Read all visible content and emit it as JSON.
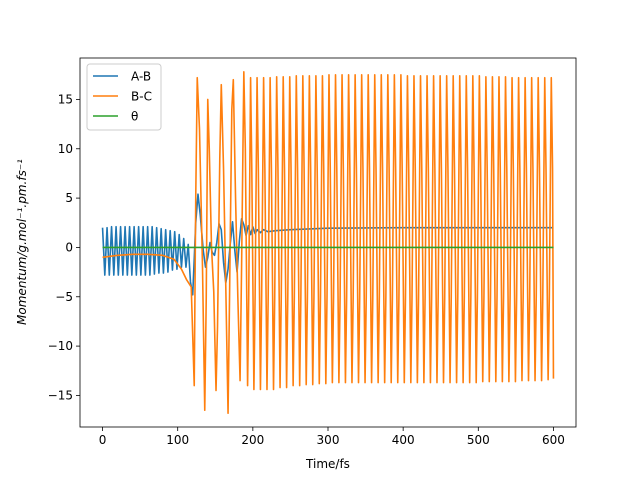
{
  "chart_data": {
    "type": "line",
    "xlabel": "Time/fs",
    "ylabel": "Momentum/g.mol⁻¹.pm.fs⁻¹",
    "xlim": [
      -30,
      630
    ],
    "ylim": [
      -18.2,
      19.2
    ],
    "xticks": [
      0,
      100,
      200,
      300,
      400,
      500,
      600
    ],
    "yticks": [
      -15,
      -10,
      -5,
      0,
      5,
      10,
      15
    ],
    "grid": false,
    "legend_position": "upper left",
    "series": [
      {
        "name": "A-B",
        "color": "#1f77b4",
        "points": [
          [
            0,
            2.0
          ],
          [
            3,
            -2.8
          ],
          [
            6,
            2.0
          ],
          [
            9,
            -2.8
          ],
          [
            12,
            2.1
          ],
          [
            15,
            -2.8
          ],
          [
            18,
            2.1
          ],
          [
            21,
            -2.8
          ],
          [
            24,
            2.1
          ],
          [
            27,
            -2.8
          ],
          [
            30,
            2.1
          ],
          [
            33,
            -2.8
          ],
          [
            36,
            2.1
          ],
          [
            39,
            -2.8
          ],
          [
            42,
            2.1
          ],
          [
            45,
            -2.8
          ],
          [
            48,
            2.1
          ],
          [
            51,
            -2.8
          ],
          [
            54,
            2.1
          ],
          [
            57,
            -2.8
          ],
          [
            60,
            2.1
          ],
          [
            63,
            -2.8
          ],
          [
            66,
            2.1
          ],
          [
            69,
            -2.7
          ],
          [
            72,
            2.0
          ],
          [
            75,
            -2.6
          ],
          [
            78,
            1.9
          ],
          [
            81,
            -2.6
          ],
          [
            84,
            1.8
          ],
          [
            87,
            -2.5
          ],
          [
            90,
            1.7
          ],
          [
            93,
            -2.3
          ],
          [
            96,
            1.6
          ],
          [
            99,
            -2.2
          ],
          [
            102,
            1.3
          ],
          [
            105,
            -2.0
          ],
          [
            108,
            0.9
          ],
          [
            111,
            -2.0
          ],
          [
            114,
            0.3
          ],
          [
            117,
            -3.5
          ],
          [
            120,
            -4.8
          ],
          [
            124,
            2.5
          ],
          [
            127,
            5.4
          ],
          [
            130,
            3.3
          ],
          [
            134,
            -0.3
          ],
          [
            137,
            -2.0
          ],
          [
            140,
            -1.0
          ],
          [
            143,
            0.5
          ],
          [
            146,
            -0.5
          ],
          [
            149,
            -0.8
          ],
          [
            152,
            0.5
          ],
          [
            155,
            2.4
          ],
          [
            158,
            1.8
          ],
          [
            161,
            -1.5
          ],
          [
            164,
            -3.6
          ],
          [
            167,
            -2.2
          ],
          [
            170,
            0.4
          ],
          [
            173,
            2.6
          ],
          [
            176,
            -0.3
          ],
          [
            179,
            -2.5
          ],
          [
            182,
            0.6
          ],
          [
            185,
            2.9
          ],
          [
            188,
            2.3
          ],
          [
            191,
            1.2
          ],
          [
            194,
            2.2
          ],
          [
            197,
            1.3
          ],
          [
            200,
            2.1
          ],
          [
            203,
            1.4
          ],
          [
            206,
            1.8
          ],
          [
            210,
            1.5
          ],
          [
            214,
            1.8
          ],
          [
            220,
            1.6
          ],
          [
            230,
            1.7
          ],
          [
            250,
            1.8
          ],
          [
            300,
            1.95
          ],
          [
            400,
            2.0
          ],
          [
            500,
            2.0
          ],
          [
            600,
            2.0
          ]
        ]
      },
      {
        "name": "B-C",
        "color": "#ff7f0e",
        "points": [
          [
            0,
            -1.0
          ],
          [
            20,
            -0.8
          ],
          [
            40,
            -0.7
          ],
          [
            60,
            -0.7
          ],
          [
            80,
            -0.8
          ],
          [
            95,
            -1.2
          ],
          [
            105,
            -2.2
          ],
          [
            112,
            -3.3
          ],
          [
            118,
            -4.0
          ],
          [
            122,
            -14.0
          ],
          [
            124,
            5.0
          ],
          [
            126,
            17.2
          ],
          [
            129,
            12.0
          ],
          [
            133,
            -2.0
          ],
          [
            136,
            -16.5
          ],
          [
            138,
            -5.0
          ],
          [
            140,
            15.0
          ],
          [
            142,
            10.0
          ],
          [
            145,
            0.0
          ],
          [
            148,
            -4.5
          ],
          [
            151,
            -14.5
          ],
          [
            153,
            -8.0
          ],
          [
            156,
            9.0
          ],
          [
            158,
            16.5
          ],
          [
            161,
            8.0
          ],
          [
            164,
            -4.0
          ],
          [
            167,
            -16.8
          ],
          [
            169,
            -5.0
          ],
          [
            172,
            14.0
          ],
          [
            174,
            17.0
          ],
          [
            177,
            5.0
          ],
          [
            180,
            -5.0
          ],
          [
            183,
            -13.5
          ],
          [
            185,
            -2.0
          ],
          [
            188,
            17.8
          ],
          [
            190,
            10.0
          ],
          [
            193,
            -14.0
          ],
          [
            194.5,
            -5.0
          ],
          [
            197,
            17.2
          ],
          [
            198.6,
            8.0
          ],
          [
            201.4,
            -14.4
          ],
          [
            203,
            -5.0
          ],
          [
            205.6,
            17.2
          ],
          [
            207.3,
            8.0
          ],
          [
            210.1,
            -14.4
          ],
          [
            211.7,
            -5.0
          ],
          [
            214.3,
            17.2
          ],
          [
            216.0,
            8.0
          ],
          [
            218.8,
            -14.4
          ],
          [
            220.4,
            -5.0
          ],
          [
            223.0,
            17.2
          ],
          [
            224.7,
            8.0
          ],
          [
            227.5,
            -14.4
          ],
          [
            229.1,
            -5.0
          ],
          [
            231.7,
            17.3
          ],
          [
            233.4,
            8.0
          ],
          [
            236.2,
            -14.2
          ],
          [
            237.8,
            -5.0
          ],
          [
            240.4,
            17.3
          ],
          [
            242.1,
            8.0
          ],
          [
            244.9,
            -14.2
          ],
          [
            246.5,
            -5.0
          ],
          [
            249.1,
            17.3
          ],
          [
            250.8,
            8.0
          ],
          [
            253.6,
            -14.0
          ],
          [
            255.2,
            -5.0
          ],
          [
            257.8,
            17.4
          ],
          [
            259.5,
            8.0
          ],
          [
            262.3,
            -14.0
          ],
          [
            263.9,
            -5.0
          ],
          [
            266.5,
            17.4
          ],
          [
            268.2,
            8.0
          ],
          [
            271.0,
            -13.9
          ],
          [
            272.6,
            -5.0
          ],
          [
            275.2,
            17.4
          ],
          [
            276.9,
            8.0
          ],
          [
            279.7,
            -13.9
          ],
          [
            281.3,
            -5.0
          ],
          [
            283.9,
            17.4
          ],
          [
            285.6,
            8.0
          ],
          [
            288.4,
            -13.8
          ],
          [
            290.0,
            -5.0
          ],
          [
            292.6,
            17.4
          ],
          [
            294.3,
            8.0
          ],
          [
            297.1,
            -13.8
          ],
          [
            298.7,
            -5.0
          ],
          [
            301.3,
            17.5
          ],
          [
            303.0,
            8.0
          ],
          [
            305.8,
            -13.7
          ],
          [
            307.4,
            -5.0
          ],
          [
            310.0,
            17.5
          ],
          [
            311.7,
            8.0
          ],
          [
            314.5,
            -13.7
          ],
          [
            316.1,
            -5.0
          ],
          [
            318.7,
            17.5
          ],
          [
            320.4,
            8.0
          ],
          [
            323.2,
            -13.7
          ],
          [
            324.8,
            -5.0
          ],
          [
            327.4,
            17.5
          ],
          [
            329.1,
            8.0
          ],
          [
            331.9,
            -13.7
          ],
          [
            333.5,
            -5.0
          ],
          [
            336.1,
            17.5
          ],
          [
            337.8,
            8.0
          ],
          [
            340.6,
            -13.7
          ],
          [
            342.2,
            -5.0
          ],
          [
            344.8,
            17.5
          ],
          [
            346.5,
            8.0
          ],
          [
            349.3,
            -13.7
          ],
          [
            350.9,
            -5.0
          ],
          [
            353.5,
            17.5
          ],
          [
            355.2,
            8.0
          ],
          [
            358.0,
            -13.7
          ],
          [
            359.6,
            -5.0
          ],
          [
            362.2,
            17.5
          ],
          [
            363.9,
            8.0
          ],
          [
            366.7,
            -13.7
          ],
          [
            368.3,
            -5.0
          ],
          [
            370.9,
            17.5
          ],
          [
            372.6,
            8.0
          ],
          [
            375.4,
            -13.7
          ],
          [
            377.0,
            -5.0
          ],
          [
            379.6,
            17.5
          ],
          [
            381.3,
            8.0
          ],
          [
            384.1,
            -13.7
          ],
          [
            385.7,
            -5.0
          ],
          [
            388.3,
            17.5
          ],
          [
            390.0,
            8.0
          ],
          [
            392.8,
            -13.7
          ],
          [
            394.4,
            -5.0
          ],
          [
            397.0,
            17.5
          ],
          [
            398.7,
            8.0
          ],
          [
            401.5,
            -13.7
          ],
          [
            403.1,
            -5.0
          ],
          [
            405.7,
            17.4
          ],
          [
            407.4,
            8.0
          ],
          [
            410.2,
            -13.7
          ],
          [
            411.8,
            -5.0
          ],
          [
            414.4,
            17.4
          ],
          [
            416.1,
            8.0
          ],
          [
            418.9,
            -13.7
          ],
          [
            420.5,
            -5.0
          ],
          [
            423.1,
            17.4
          ],
          [
            424.8,
            8.0
          ],
          [
            427.6,
            -13.7
          ],
          [
            429.2,
            -5.0
          ],
          [
            431.8,
            17.4
          ],
          [
            433.5,
            8.0
          ],
          [
            436.3,
            -13.7
          ],
          [
            437.9,
            -5.0
          ],
          [
            440.5,
            17.4
          ],
          [
            442.2,
            8.0
          ],
          [
            445.0,
            -13.7
          ],
          [
            446.6,
            -5.0
          ],
          [
            449.2,
            17.4
          ],
          [
            450.9,
            8.0
          ],
          [
            453.7,
            -13.7
          ],
          [
            455.3,
            -5.0
          ],
          [
            457.9,
            17.4
          ],
          [
            459.6,
            8.0
          ],
          [
            462.4,
            -13.7
          ],
          [
            464.0,
            -5.0
          ],
          [
            466.6,
            17.4
          ],
          [
            468.3,
            8.0
          ],
          [
            471.1,
            -13.7
          ],
          [
            472.7,
            -5.0
          ],
          [
            475.3,
            17.4
          ],
          [
            477.0,
            8.0
          ],
          [
            479.8,
            -13.7
          ],
          [
            481.4,
            -5.0
          ],
          [
            484.0,
            17.4
          ],
          [
            485.7,
            8.0
          ],
          [
            488.5,
            -13.7
          ],
          [
            490.1,
            -5.0
          ],
          [
            492.7,
            17.4
          ],
          [
            494.4,
            8.0
          ],
          [
            497.2,
            -13.7
          ],
          [
            498.8,
            -5.0
          ],
          [
            501.4,
            17.4
          ],
          [
            503.1,
            8.0
          ],
          [
            505.9,
            -13.6
          ],
          [
            507.5,
            -5.0
          ],
          [
            510.1,
            17.3
          ],
          [
            511.8,
            8.0
          ],
          [
            514.6,
            -13.6
          ],
          [
            516.2,
            -5.0
          ],
          [
            518.8,
            17.3
          ],
          [
            520.5,
            8.0
          ],
          [
            523.3,
            -13.6
          ],
          [
            524.9,
            -5.0
          ],
          [
            527.5,
            17.3
          ],
          [
            529.2,
            8.0
          ],
          [
            532.0,
            -13.6
          ],
          [
            533.6,
            -5.0
          ],
          [
            536.2,
            17.3
          ],
          [
            537.9,
            8.0
          ],
          [
            540.7,
            -13.6
          ],
          [
            542.3,
            -5.0
          ],
          [
            544.9,
            17.2
          ],
          [
            546.6,
            8.0
          ],
          [
            549.4,
            -13.6
          ],
          [
            551.0,
            -5.0
          ],
          [
            553.6,
            17.2
          ],
          [
            555.3,
            8.0
          ],
          [
            558.1,
            -13.5
          ],
          [
            559.7,
            -5.0
          ],
          [
            562.3,
            17.2
          ],
          [
            564.0,
            8.0
          ],
          [
            566.8,
            -13.5
          ],
          [
            568.4,
            -5.0
          ],
          [
            571.0,
            17.2
          ],
          [
            572.7,
            8.0
          ],
          [
            575.5,
            -13.5
          ],
          [
            577.1,
            -5.0
          ],
          [
            579.7,
            17.2
          ],
          [
            581.4,
            8.0
          ],
          [
            584.2,
            -13.5
          ],
          [
            585.8,
            -5.0
          ],
          [
            588.4,
            17.2
          ],
          [
            590.1,
            8.0
          ],
          [
            592.9,
            -13.4
          ],
          [
            594.5,
            -5.0
          ],
          [
            597.1,
            17.2
          ],
          [
            598.8,
            8.0
          ],
          [
            600,
            -13.3
          ]
        ]
      },
      {
        "name": "θ",
        "color": "#2ca02c",
        "points": [
          [
            0,
            0
          ],
          [
            600,
            0
          ]
        ]
      }
    ]
  }
}
